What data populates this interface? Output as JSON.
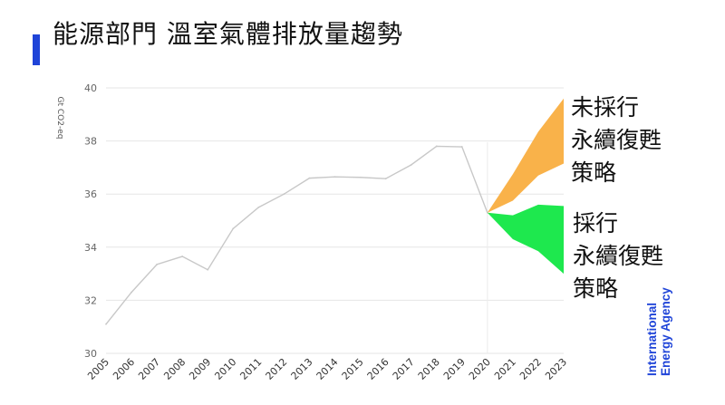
{
  "header": {
    "title": "能源部門 溫室氣體排放量趨勢",
    "accent_color": "#1f44d8"
  },
  "annotations": {
    "no_policy_lines": [
      "未採行",
      "永續復甦",
      "策略"
    ],
    "policy_lines": [
      "採行",
      "永續復甦",
      "策略"
    ]
  },
  "logo": {
    "lines": [
      "International",
      "Energy Agency"
    ],
    "color": "#1f44d8"
  },
  "chart_data": {
    "type": "area",
    "ylabel": "Gt CO2-eq",
    "ylim": [
      30,
      40
    ],
    "yticks": [
      30,
      32,
      34,
      36,
      38,
      40
    ],
    "grid": true,
    "x": [
      2005,
      2006,
      2007,
      2008,
      2009,
      2010,
      2011,
      2012,
      2013,
      2014,
      2015,
      2016,
      2017,
      2018,
      2019,
      2020,
      2021,
      2022,
      2023
    ],
    "series": [
      {
        "kind": "line",
        "color": "#c8c8c8",
        "x": [
          2005,
          2006,
          2007,
          2008,
          2009,
          2010,
          2011,
          2012,
          2013,
          2014,
          2015,
          2016,
          2017,
          2018,
          2019,
          2020
        ],
        "values": [
          31.1,
          32.3,
          33.35,
          33.65,
          33.15,
          34.7,
          35.5,
          36.0,
          36.6,
          36.65,
          36.63,
          36.58,
          37.1,
          37.8,
          37.78,
          35.3
        ]
      },
      {
        "kind": "band",
        "color": "#f9b24a",
        "x": [
          2020,
          2021,
          2022,
          2023
        ],
        "upper": [
          35.3,
          36.75,
          38.35,
          39.6
        ],
        "lower": [
          35.3,
          35.75,
          36.7,
          37.15
        ]
      },
      {
        "kind": "band",
        "color": "#1ee84e",
        "x": [
          2020,
          2021,
          2022,
          2023
        ],
        "upper": [
          35.3,
          35.2,
          35.6,
          35.55
        ],
        "lower": [
          35.3,
          34.3,
          33.85,
          33.0
        ]
      }
    ]
  }
}
